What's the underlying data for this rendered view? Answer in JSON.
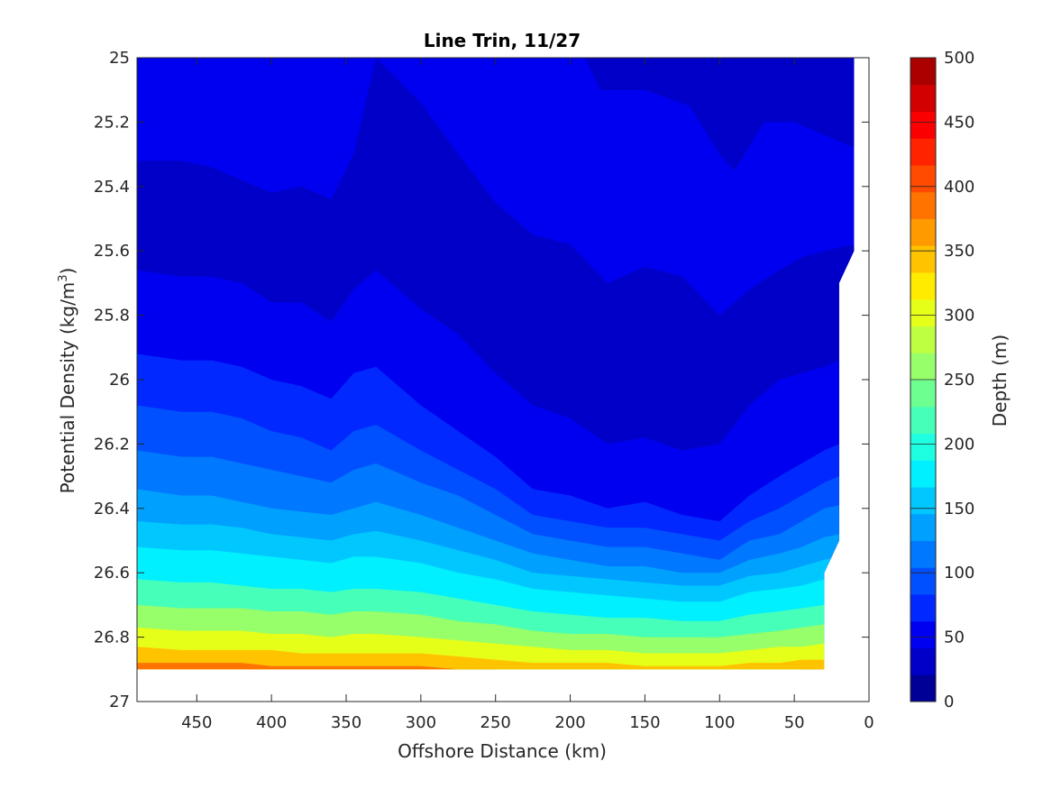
{
  "chart_data": {
    "type": "contourf",
    "title": "Line Trin, 11/27",
    "xlabel": "Offshore Distance (km)",
    "ylabel_main": "Potential Density (kg/m",
    "ylabel_sup": "3",
    "ylabel_end": ")",
    "colorbar_label": "Depth (m)",
    "xlim": [
      490,
      0
    ],
    "x_reversed": true,
    "ylim": [
      25,
      27
    ],
    "y_reversed": true,
    "xticks": [
      450,
      400,
      350,
      300,
      250,
      200,
      150,
      100,
      50,
      0
    ],
    "yticks": [
      "25",
      "25.2",
      "25.4",
      "25.6",
      "25.8",
      "26",
      "26.2",
      "26.4",
      "26.6",
      "26.8",
      "27"
    ],
    "colorbar_ticks": [
      0,
      50,
      100,
      150,
      200,
      250,
      300,
      350,
      400,
      450,
      500
    ],
    "contour_levels": [
      0,
      25,
      50,
      75,
      100,
      125,
      150,
      175,
      200,
      225,
      250,
      275,
      300,
      325,
      350,
      375,
      400,
      425,
      450,
      475,
      500
    ],
    "colormap": "jet",
    "level_colors": [
      "#000096",
      "#0000c8",
      "#0000f0",
      "#0028ff",
      "#0050ff",
      "#0078ff",
      "#00a0ff",
      "#00c8ff",
      "#00f0ff",
      "#1effe1",
      "#46ffb9",
      "#6eff91",
      "#96ff69",
      "#beff41",
      "#e6ff19",
      "#ffeb00",
      "#ffc300",
      "#ff9b00",
      "#ff7300",
      "#ff4b00",
      "#ff2300",
      "#fa0000",
      "#d20000",
      "#aa0000"
    ],
    "data_x": [
      490,
      460,
      440,
      420,
      400,
      380,
      360,
      345,
      330,
      300,
      275,
      250,
      225,
      200,
      175,
      150,
      125,
      100,
      80,
      60,
      45,
      30,
      20
    ],
    "density_of_depth_contours": {
      "25": [
        25.32,
        25.32,
        25.34,
        25.38,
        25.42,
        25.4,
        25.44,
        25.3,
        25.0,
        25.14,
        25.3,
        25.45,
        25.55,
        25.58,
        25.7,
        25.65,
        25.68,
        25.8,
        25.72,
        25.66,
        25.62,
        25.6,
        25.58
      ],
      "50": [
        25.66,
        25.68,
        25.68,
        25.7,
        25.76,
        25.76,
        25.82,
        25.72,
        25.66,
        25.78,
        25.86,
        25.98,
        26.08,
        26.12,
        26.2,
        26.18,
        26.22,
        26.2,
        26.08,
        26.0,
        25.98,
        25.96,
        25.92
      ],
      "75": [
        25.92,
        25.94,
        25.94,
        25.96,
        26.0,
        26.02,
        26.06,
        25.98,
        25.96,
        26.08,
        26.16,
        26.24,
        26.34,
        26.36,
        26.4,
        26.38,
        26.42,
        26.44,
        26.36,
        26.3,
        26.26,
        26.22,
        26.18
      ],
      "100": [
        26.08,
        26.1,
        26.1,
        26.12,
        26.16,
        26.18,
        26.22,
        26.16,
        26.14,
        26.22,
        26.28,
        26.34,
        26.42,
        26.44,
        26.46,
        26.46,
        26.48,
        26.5,
        26.44,
        26.4,
        26.36,
        26.32,
        26.28
      ],
      "125": [
        26.22,
        26.24,
        26.24,
        26.26,
        26.28,
        26.3,
        26.32,
        26.28,
        26.26,
        26.32,
        26.36,
        26.42,
        26.48,
        26.5,
        26.52,
        26.52,
        26.54,
        26.56,
        26.5,
        26.48,
        26.44,
        26.4,
        26.38
      ],
      "150": [
        26.34,
        26.36,
        26.36,
        26.38,
        26.4,
        26.41,
        26.42,
        26.4,
        26.38,
        26.42,
        26.46,
        26.5,
        26.54,
        26.56,
        26.58,
        26.58,
        26.6,
        26.6,
        26.56,
        26.54,
        26.52,
        26.49,
        26.47
      ],
      "175": [
        26.44,
        26.45,
        26.45,
        26.46,
        26.48,
        26.49,
        26.5,
        26.48,
        26.47,
        26.5,
        26.53,
        26.56,
        26.6,
        26.61,
        26.62,
        26.63,
        26.64,
        26.64,
        26.61,
        26.6,
        26.58,
        26.56,
        26.54
      ],
      "200": [
        26.52,
        26.53,
        26.53,
        26.54,
        26.55,
        26.56,
        26.57,
        26.55,
        26.55,
        26.57,
        26.6,
        26.62,
        26.65,
        26.66,
        26.67,
        26.68,
        26.69,
        26.69,
        26.66,
        26.65,
        26.64,
        26.62,
        26.6
      ],
      "250": [
        26.62,
        26.63,
        26.63,
        26.64,
        26.65,
        26.65,
        26.66,
        26.65,
        26.65,
        26.66,
        26.68,
        26.7,
        26.72,
        26.73,
        26.74,
        26.74,
        26.75,
        26.75,
        26.73,
        26.72,
        26.71,
        26.7,
        26.69
      ],
      "300": [
        26.7,
        26.71,
        26.71,
        26.71,
        26.72,
        26.72,
        26.73,
        26.72,
        26.72,
        26.73,
        26.75,
        26.76,
        26.78,
        26.79,
        26.79,
        26.8,
        26.8,
        26.8,
        26.79,
        26.78,
        26.77,
        26.76,
        26.76
      ],
      "350": [
        26.77,
        26.78,
        26.78,
        26.78,
        26.79,
        26.79,
        26.8,
        26.79,
        26.79,
        26.8,
        26.81,
        26.82,
        26.83,
        26.84,
        26.84,
        26.85,
        26.85,
        26.85,
        26.84,
        26.83,
        26.83,
        26.82,
        26.82
      ],
      "400": [
        26.83,
        26.84,
        26.84,
        26.84,
        26.84,
        26.85,
        26.85,
        26.85,
        26.85,
        26.85,
        26.86,
        26.87,
        26.88,
        26.88,
        26.88,
        26.89,
        26.89,
        26.89,
        26.88,
        26.88,
        26.87,
        26.87,
        26.87
      ],
      "450": [
        26.88,
        26.88,
        26.88,
        26.88,
        26.89,
        26.89,
        26.89,
        26.89,
        26.89,
        26.89,
        26.9,
        26.9,
        26.91,
        26.91,
        26.91,
        26.91,
        26.91,
        26.91,
        26.91,
        26.91,
        26.9,
        26.9,
        26.9
      ]
    },
    "data_top_density": 25.0,
    "data_bottom_density": 26.9
  }
}
